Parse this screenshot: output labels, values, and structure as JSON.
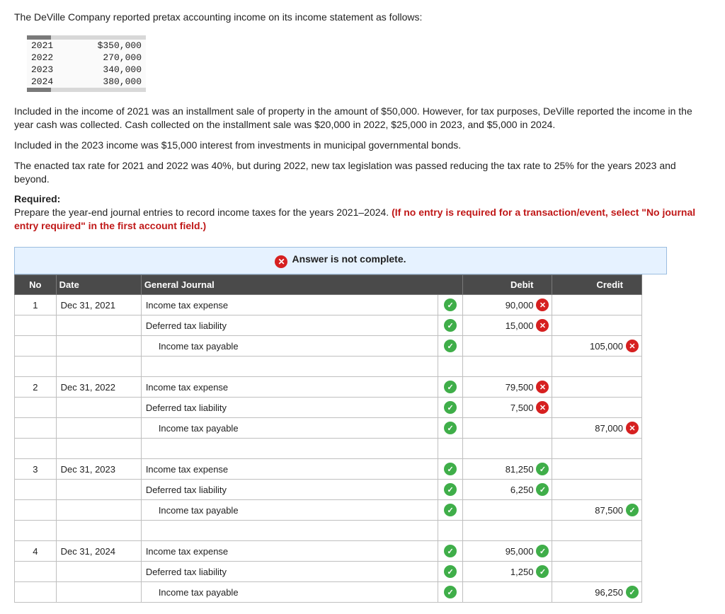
{
  "intro": "The DeVille Company reported pretax accounting income on its income statement as follows:",
  "income_table": {
    "rows": [
      {
        "year": "2021",
        "amount": "$350,000"
      },
      {
        "year": "2022",
        "amount": "270,000"
      },
      {
        "year": "2023",
        "amount": "340,000"
      },
      {
        "year": "2024",
        "amount": "380,000"
      }
    ]
  },
  "para1": "Included in the income of 2021 was an installment sale of property in the amount of $50,000. However, for tax purposes, DeVille reported the income in the year cash was collected. Cash collected on the installment sale was $20,000 in 2022, $25,000 in 2023, and $5,000 in 2024.",
  "para2": "Included in the 2023 income was $15,000 interest from investments in municipal governmental bonds.",
  "para3": "The enacted tax rate for 2021 and 2022 was 40%, but during 2022, new tax legislation was passed reducing the tax rate to 25% for the years 2023 and beyond.",
  "required_label": "Required:",
  "required_text": "Prepare the year-end journal entries to record income taxes for the years 2021–2024. ",
  "required_red": "(If no entry is required for a transaction/event, select \"No journal entry required\" in the first account field.)",
  "banner": "Answer is not complete.",
  "headers": {
    "no": "No",
    "date": "Date",
    "gj": "General Journal",
    "debit": "Debit",
    "credit": "Credit"
  },
  "entries": [
    {
      "no": "1",
      "date": "Dec 31, 2021",
      "lines": [
        {
          "acct": "Income tax expense",
          "indent": false,
          "acct_mark": "ok",
          "debit": "90,000",
          "debit_mark": "bad",
          "credit": "",
          "credit_mark": ""
        },
        {
          "acct": "Deferred tax liability",
          "indent": false,
          "acct_mark": "ok",
          "debit": "15,000",
          "debit_mark": "bad",
          "credit": "",
          "credit_mark": ""
        },
        {
          "acct": "Income tax payable",
          "indent": true,
          "acct_mark": "ok",
          "debit": "",
          "debit_mark": "",
          "credit": "105,000",
          "credit_mark": "bad"
        }
      ]
    },
    {
      "no": "2",
      "date": "Dec 31, 2022",
      "lines": [
        {
          "acct": "Income tax expense",
          "indent": false,
          "acct_mark": "ok",
          "debit": "79,500",
          "debit_mark": "bad",
          "credit": "",
          "credit_mark": ""
        },
        {
          "acct": "Deferred tax liability",
          "indent": false,
          "acct_mark": "ok",
          "debit": "7,500",
          "debit_mark": "bad",
          "credit": "",
          "credit_mark": ""
        },
        {
          "acct": "Income tax payable",
          "indent": true,
          "acct_mark": "ok",
          "debit": "",
          "debit_mark": "",
          "credit": "87,000",
          "credit_mark": "bad"
        }
      ]
    },
    {
      "no": "3",
      "date": "Dec 31, 2023",
      "lines": [
        {
          "acct": "Income tax expense",
          "indent": false,
          "acct_mark": "ok",
          "debit": "81,250",
          "debit_mark": "ok",
          "credit": "",
          "credit_mark": ""
        },
        {
          "acct": "Deferred tax liability",
          "indent": false,
          "acct_mark": "ok",
          "debit": "6,250",
          "debit_mark": "ok",
          "credit": "",
          "credit_mark": ""
        },
        {
          "acct": "Income tax payable",
          "indent": true,
          "acct_mark": "ok",
          "debit": "",
          "debit_mark": "",
          "credit": "87,500",
          "credit_mark": "ok"
        }
      ]
    },
    {
      "no": "4",
      "date": "Dec 31, 2024",
      "lines": [
        {
          "acct": "Income tax expense",
          "indent": false,
          "acct_mark": "ok",
          "debit": "95,000",
          "debit_mark": "ok",
          "credit": "",
          "credit_mark": ""
        },
        {
          "acct": "Deferred tax liability",
          "indent": false,
          "acct_mark": "ok",
          "debit": "1,250",
          "debit_mark": "ok",
          "credit": "",
          "credit_mark": ""
        },
        {
          "acct": "Income tax payable",
          "indent": true,
          "acct_mark": "ok",
          "debit": "",
          "debit_mark": "",
          "credit": "96,250",
          "credit_mark": "ok"
        }
      ]
    }
  ]
}
